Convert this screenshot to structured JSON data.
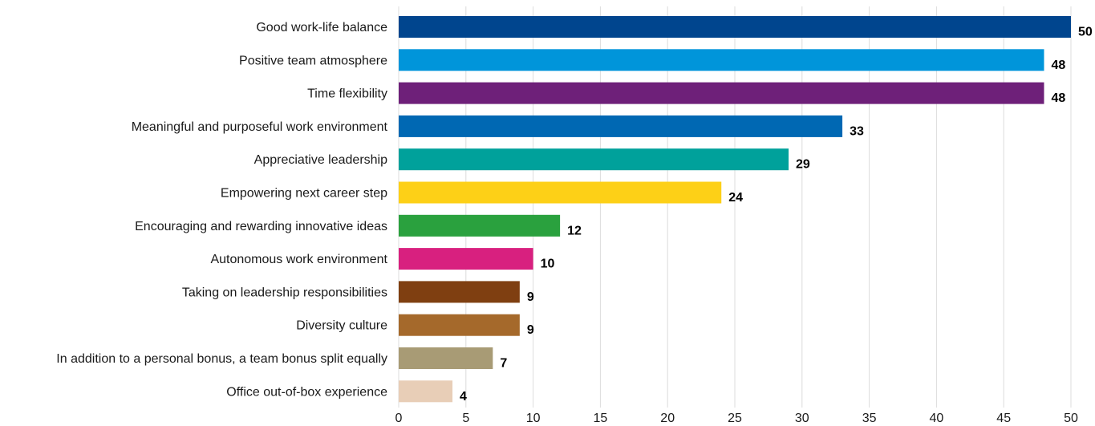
{
  "chart_data": {
    "type": "bar",
    "orientation": "horizontal",
    "title": "",
    "xlabel": "",
    "ylabel": "",
    "xlim": [
      0,
      50
    ],
    "x_ticks": [
      0,
      5,
      10,
      15,
      20,
      25,
      30,
      35,
      40,
      45,
      50
    ],
    "grid": true,
    "data_labels": true,
    "categories": [
      "Good work-life balance",
      "Positive team atmosphere",
      "Time flexibility",
      "Meaningful and purposeful work environment",
      "Appreciative leadership",
      "Empowering next career step",
      "Encouraging and rewarding innovative ideas",
      "Autonomous work environment",
      "Taking on leadership responsibilities",
      "Diversity culture",
      "In addition to a personal bonus, a team bonus split equally",
      "Office out-of-box experience"
    ],
    "values": [
      50,
      48,
      48,
      33,
      29,
      24,
      12,
      10,
      9,
      9,
      7,
      4
    ],
    "colors": [
      "#00458e",
      "#0095da",
      "#6e2079",
      "#0068b3",
      "#00a19b",
      "#fdd017",
      "#2aa13e",
      "#d8207f",
      "#7f3f11",
      "#a5692b",
      "#a89b75",
      "#e8ceb7"
    ]
  }
}
